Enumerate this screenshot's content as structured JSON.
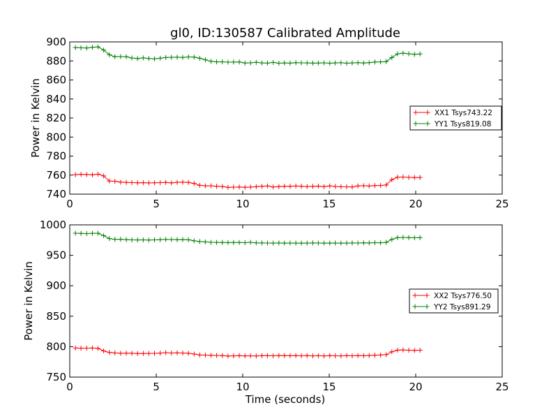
{
  "figure": {
    "title": "gl0, ID:130587 Calibrated Amplitude",
    "xlabel": "Time (seconds)"
  },
  "chart_data": [
    {
      "type": "line",
      "title": "gl0, ID:130587 Calibrated Amplitude",
      "xlabel": "",
      "ylabel": "Power in Kelvin",
      "xlim": [
        0,
        25
      ],
      "ylim": [
        740,
        900
      ],
      "xticks": [
        "0",
        "5",
        "10",
        "15",
        "20",
        "25"
      ],
      "yticks": [
        "740",
        "760",
        "780",
        "800",
        "820",
        "840",
        "860",
        "880",
        "900"
      ],
      "grid": false,
      "legend_position": "right",
      "x": [
        0.33,
        0.65,
        0.98,
        1.31,
        1.63,
        1.96,
        2.29,
        2.61,
        2.94,
        3.27,
        3.59,
        3.92,
        4.25,
        4.57,
        4.9,
        5.23,
        5.55,
        5.88,
        6.21,
        6.53,
        6.86,
        7.19,
        7.51,
        7.84,
        8.17,
        8.49,
        8.82,
        9.15,
        9.47,
        9.8,
        10.13,
        10.45,
        10.78,
        11.11,
        11.43,
        11.76,
        12.09,
        12.41,
        12.74,
        13.07,
        13.39,
        13.72,
        14.05,
        14.37,
        14.7,
        15.03,
        15.35,
        15.68,
        16.01,
        16.33,
        16.66,
        16.99,
        17.31,
        17.64,
        17.97,
        18.29,
        18.62,
        18.95,
        19.27,
        19.6,
        19.93,
        20.25
      ],
      "series": [
        {
          "name": "XX1 Tsys743.22",
          "color": "#ff0000",
          "values": [
            760.5,
            760.8,
            760.6,
            760.3,
            761.0,
            759.2,
            753.8,
            753.6,
            752.6,
            752.3,
            752.1,
            751.9,
            752.0,
            751.8,
            751.9,
            752.1,
            752.3,
            751.8,
            752.4,
            752.6,
            752.3,
            751.2,
            749.3,
            748.7,
            748.8,
            748.3,
            748.0,
            747.1,
            747.3,
            747.5,
            747.2,
            747.4,
            747.8,
            748.2,
            748.6,
            747.5,
            747.9,
            748.3,
            748.2,
            748.5,
            748.3,
            748.0,
            748.2,
            748.4,
            747.9,
            748.6,
            748.1,
            747.8,
            747.7,
            747.5,
            748.6,
            748.9,
            748.5,
            749.0,
            749.1,
            749.6,
            755.2,
            757.8,
            758.0,
            757.6,
            757.4,
            757.5
          ]
        },
        {
          "name": "YY1 Tsys819.08",
          "color": "#008000",
          "values": [
            894.0,
            893.8,
            893.6,
            894.3,
            894.8,
            891.5,
            886.5,
            884.4,
            884.6,
            884.4,
            883.1,
            882.5,
            883.2,
            882.6,
            882.2,
            882.8,
            883.6,
            883.8,
            883.9,
            883.7,
            884.2,
            884.0,
            882.8,
            881.2,
            879.6,
            879.0,
            879.1,
            878.7,
            878.8,
            878.9,
            877.8,
            878.0,
            878.5,
            877.9,
            877.7,
            878.4,
            877.6,
            877.9,
            877.7,
            878.2,
            878.0,
            877.9,
            877.7,
            877.8,
            878.0,
            877.6,
            877.9,
            878.1,
            877.6,
            877.9,
            878.2,
            877.8,
            878.2,
            878.9,
            879.0,
            879.3,
            883.6,
            887.4,
            888.2,
            887.5,
            887.0,
            887.3
          ]
        }
      ]
    },
    {
      "type": "line",
      "title": "",
      "xlabel": "Time (seconds)",
      "ylabel": "Power in Kelvin",
      "xlim": [
        0,
        25
      ],
      "ylim": [
        750,
        1000
      ],
      "xticks": [
        "0",
        "5",
        "10",
        "15",
        "20",
        "25"
      ],
      "yticks": [
        "750",
        "800",
        "850",
        "900",
        "950",
        "1000"
      ],
      "grid": false,
      "legend_position": "right",
      "x": [
        0.33,
        0.65,
        0.98,
        1.31,
        1.63,
        1.96,
        2.29,
        2.61,
        2.94,
        3.27,
        3.59,
        3.92,
        4.25,
        4.57,
        4.9,
        5.23,
        5.55,
        5.88,
        6.21,
        6.53,
        6.86,
        7.19,
        7.51,
        7.84,
        8.17,
        8.49,
        8.82,
        9.15,
        9.47,
        9.8,
        10.13,
        10.45,
        10.78,
        11.11,
        11.43,
        11.76,
        12.09,
        12.41,
        12.74,
        13.07,
        13.39,
        13.72,
        14.05,
        14.37,
        14.7,
        15.03,
        15.35,
        15.68,
        16.01,
        16.33,
        16.66,
        16.99,
        17.31,
        17.64,
        17.97,
        18.29,
        18.62,
        18.95,
        19.27,
        19.6,
        19.93,
        20.25
      ],
      "series": [
        {
          "name": "XX2 Tsys776.50",
          "color": "#ff0000",
          "values": [
            797.8,
            797.5,
            797.6,
            797.7,
            797.2,
            793.0,
            790.5,
            789.7,
            789.1,
            789.3,
            789.2,
            788.7,
            788.8,
            788.9,
            789.0,
            789.4,
            790.1,
            789.6,
            789.8,
            789.5,
            789.2,
            787.8,
            786.4,
            786.1,
            785.8,
            785.5,
            785.3,
            784.6,
            784.9,
            785.2,
            784.8,
            785.0,
            784.7,
            785.1,
            785.3,
            785.0,
            785.4,
            785.2,
            785.1,
            785.3,
            785.0,
            785.2,
            784.9,
            785.1,
            784.8,
            785.3,
            785.0,
            784.9,
            785.2,
            785.0,
            785.3,
            785.1,
            785.4,
            786.0,
            786.3,
            786.8,
            791.5,
            794.3,
            794.6,
            794.2,
            793.9,
            794.1
          ]
        },
        {
          "name": "YY2 Tsys891.29",
          "color": "#008000",
          "values": [
            986.3,
            986.0,
            985.7,
            986.1,
            986.2,
            982.3,
            977.5,
            976.3,
            976.3,
            975.8,
            975.4,
            975.2,
            975.4,
            975.0,
            975.3,
            975.6,
            976.0,
            975.9,
            975.7,
            975.8,
            975.5,
            973.8,
            972.6,
            972.1,
            971.4,
            971.2,
            971.0,
            970.9,
            971.1,
            971.0,
            970.8,
            971.3,
            970.4,
            970.3,
            970.2,
            970.1,
            970.3,
            970.0,
            970.2,
            970.1,
            970.0,
            970.1,
            970.3,
            970.2,
            970.0,
            970.1,
            970.2,
            970.0,
            970.1,
            970.3,
            970.2,
            970.5,
            970.3,
            970.8,
            970.6,
            971.2,
            976.1,
            979.0,
            979.4,
            979.1,
            978.8,
            979.0
          ]
        }
      ]
    }
  ]
}
